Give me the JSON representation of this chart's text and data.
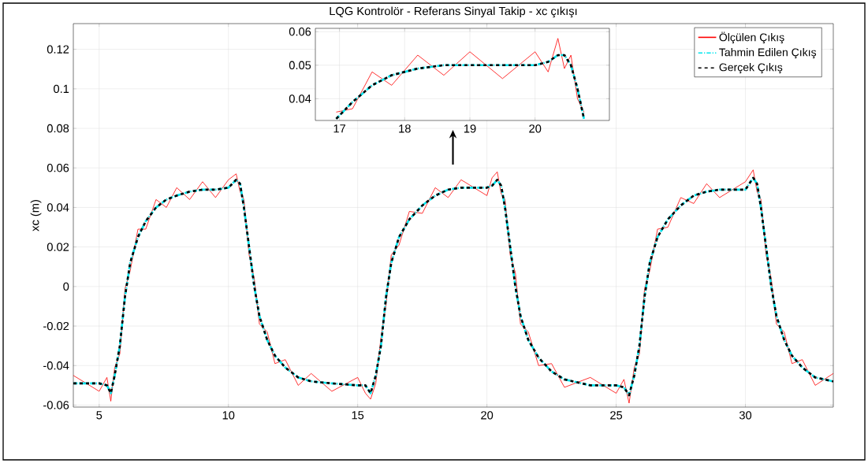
{
  "chart_data": [
    {
      "type": "line",
      "title": "LQG Kontrolör - Referans Sinyal Takip - xc çıkışı",
      "ylabel": "xc (m)",
      "x": [
        4.0,
        5.0,
        5.3,
        5.45,
        5.6,
        5.8,
        6.0,
        6.2,
        6.5,
        6.8,
        7.2,
        7.6,
        8.0,
        8.5,
        9.0,
        9.5,
        10.0,
        10.3,
        10.45,
        10.6,
        10.8,
        11.0,
        11.2,
        11.5,
        11.8,
        12.2,
        12.7,
        13.2,
        14,
        15,
        15.3,
        15.5,
        15.7,
        15.9,
        16.1,
        16.3,
        16.6,
        17.0,
        17.5,
        18,
        18.5,
        19,
        20,
        20.2,
        20.4,
        20.55,
        20.7,
        20.9,
        21.1,
        21.3,
        21.6,
        22,
        22.5,
        23,
        24,
        25,
        25.3,
        25.5,
        25.7,
        25.9,
        26.1,
        26.3,
        26.6,
        27,
        27.5,
        28,
        28.5,
        29,
        30,
        30.3,
        30.45,
        30.6,
        30.8,
        31,
        31.2,
        31.5,
        31.8,
        32.2,
        32.7,
        33.4
      ],
      "series": [
        {
          "name": "Ölçülen Çıkış",
          "color": "#ff0000",
          "line_style": "solid",
          "values": [
            -0.045,
            -0.053,
            -0.046,
            -0.058,
            -0.041,
            -0.034,
            -0.001,
            0.008,
            0.029,
            0.029,
            0.044,
            0.04,
            0.05,
            0.044,
            0.053,
            0.045,
            0.054,
            0.057,
            0.048,
            0.044,
            0.016,
            0.004,
            -0.019,
            -0.023,
            -0.039,
            -0.037,
            -0.05,
            -0.044,
            -0.053,
            -0.046,
            -0.054,
            -0.057,
            -0.049,
            -0.026,
            -0.009,
            0.016,
            0.021,
            0.038,
            0.037,
            0.05,
            0.045,
            0.054,
            0.046,
            0.055,
            0.058,
            0.047,
            0.044,
            0.016,
            0.007,
            -0.019,
            -0.023,
            -0.04,
            -0.039,
            -0.051,
            -0.046,
            -0.054,
            -0.047,
            -0.059,
            -0.041,
            -0.034,
            -0.001,
            0.008,
            0.029,
            0.03,
            0.045,
            0.042,
            0.052,
            0.045,
            0.053,
            0.059,
            0.048,
            0.044,
            0.016,
            0.004,
            -0.019,
            -0.023,
            -0.039,
            -0.037,
            -0.05,
            -0.044
          ]
        },
        {
          "name": "Tahmin Edilen Çıkış",
          "color": "#00e5ee",
          "line_style": "dashdot",
          "values": [
            -0.049,
            -0.049,
            -0.05,
            -0.054,
            -0.045,
            -0.03,
            -0.005,
            0.012,
            0.025,
            0.033,
            0.04,
            0.044,
            0.046,
            0.048,
            0.049,
            0.049,
            0.05,
            0.054,
            0.052,
            0.04,
            0.02,
            0.0,
            -0.015,
            -0.027,
            -0.035,
            -0.041,
            -0.046,
            -0.048,
            -0.049,
            -0.05,
            -0.05,
            -0.054,
            -0.045,
            -0.03,
            -0.005,
            0.012,
            0.025,
            0.034,
            0.041,
            0.046,
            0.049,
            0.05,
            0.05,
            0.051,
            0.054,
            0.051,
            0.04,
            0.02,
            0.0,
            -0.015,
            -0.027,
            -0.036,
            -0.043,
            -0.047,
            -0.05,
            -0.05,
            -0.051,
            -0.055,
            -0.045,
            -0.03,
            -0.005,
            0.012,
            0.025,
            0.034,
            0.041,
            0.046,
            0.048,
            0.049,
            0.049,
            0.055,
            0.052,
            0.04,
            0.02,
            0.0,
            -0.015,
            -0.027,
            -0.035,
            -0.041,
            -0.046,
            -0.048
          ]
        },
        {
          "name": "Gerçek Çıkış",
          "color": "#000000",
          "line_style": "dashed",
          "values": [
            -0.049,
            -0.049,
            -0.05,
            -0.054,
            -0.045,
            -0.03,
            -0.005,
            0.012,
            0.025,
            0.033,
            0.04,
            0.044,
            0.046,
            0.048,
            0.049,
            0.049,
            0.05,
            0.054,
            0.052,
            0.04,
            0.02,
            0.0,
            -0.015,
            -0.027,
            -0.035,
            -0.041,
            -0.046,
            -0.048,
            -0.049,
            -0.05,
            -0.05,
            -0.054,
            -0.045,
            -0.03,
            -0.005,
            0.012,
            0.025,
            0.034,
            0.041,
            0.046,
            0.049,
            0.05,
            0.05,
            0.051,
            0.054,
            0.051,
            0.04,
            0.02,
            0.0,
            -0.015,
            -0.027,
            -0.036,
            -0.043,
            -0.047,
            -0.05,
            -0.05,
            -0.051,
            -0.055,
            -0.045,
            -0.03,
            -0.005,
            0.012,
            0.025,
            0.034,
            0.041,
            0.046,
            0.048,
            0.049,
            0.049,
            0.055,
            0.052,
            0.04,
            0.02,
            0.0,
            -0.015,
            -0.027,
            -0.035,
            -0.041,
            -0.046,
            -0.048
          ]
        }
      ],
      "xlim": [
        4.0,
        33.4
      ],
      "ylim": [
        -0.061,
        0.133
      ],
      "xticks": [
        5,
        10,
        15,
        20,
        25,
        30
      ],
      "yticks": [
        -0.06,
        -0.04,
        -0.02,
        0,
        0.02,
        0.04,
        0.06,
        0.08,
        0.1,
        0.12
      ],
      "grid": true,
      "legend": "top right"
    },
    {
      "type": "line",
      "x": [
        16.95,
        17.2,
        17.5,
        17.8,
        18.2,
        18.6,
        19,
        19.5,
        20,
        20.2,
        20.35,
        20.45,
        20.55,
        20.65,
        20.75
      ],
      "series": [
        {
          "color": "#ff0000",
          "line_style": "solid",
          "values": [
            0.036,
            0.037,
            0.048,
            0.044,
            0.053,
            0.047,
            0.054,
            0.046,
            0.054,
            0.048,
            0.058,
            0.049,
            0.053,
            0.04,
            0.036
          ]
        },
        {
          "color": "#00e5ee",
          "line_style": "dashdot",
          "values": [
            0.034,
            0.039,
            0.044,
            0.047,
            0.049,
            0.05,
            0.05,
            0.05,
            0.05,
            0.051,
            0.053,
            0.053,
            0.05,
            0.043,
            0.034
          ]
        },
        {
          "color": "#000000",
          "line_style": "dashed",
          "values": [
            0.034,
            0.039,
            0.044,
            0.047,
            0.049,
            0.05,
            0.05,
            0.05,
            0.05,
            0.051,
            0.053,
            0.053,
            0.05,
            0.043,
            0.034
          ]
        }
      ],
      "xlim": [
        16.63,
        21.14
      ],
      "ylim": [
        0.0335,
        0.061
      ],
      "xticks": [
        17,
        18,
        19,
        20
      ],
      "yticks": [
        0.04,
        0.05,
        0.06
      ],
      "grid": true
    }
  ]
}
